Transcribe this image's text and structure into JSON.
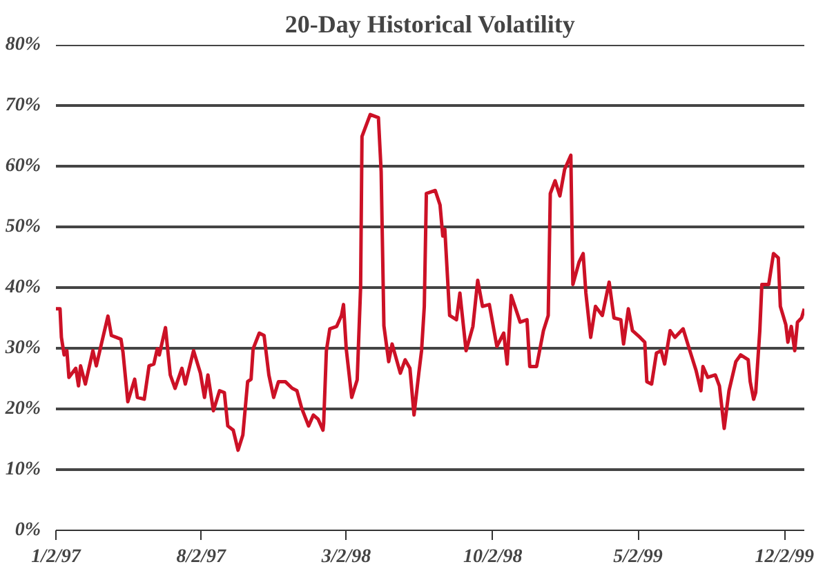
{
  "chart_data": {
    "type": "line",
    "title": "20-Day Historical Volatility",
    "x": [
      "1997-01-02",
      "1997-01-08",
      "1997-01-10",
      "1997-01-14",
      "1997-01-18",
      "1997-01-21",
      "1997-01-31",
      "1997-02-04",
      "1997-02-07",
      "1997-02-14",
      "1997-02-25",
      "1997-03-02",
      "1997-03-10",
      "1997-03-19",
      "1997-03-24",
      "1997-03-31",
      "1997-04-07",
      "1997-04-10",
      "1997-04-17",
      "1997-04-27",
      "1997-05-01",
      "1997-05-11",
      "1997-05-18",
      "1997-05-25",
      "1997-05-30",
      "1997-06-02",
      "1997-06-11",
      "1997-06-18",
      "1997-06-25",
      "1997-07-05",
      "1997-07-10",
      "1997-07-22",
      "1997-08-01",
      "1997-08-07",
      "1997-08-12",
      "1997-08-20",
      "1997-08-29",
      "1997-09-05",
      "1997-09-10",
      "1997-09-18",
      "1997-09-25",
      "1997-10-02",
      "1997-10-09",
      "1997-10-14",
      "1997-10-17",
      "1997-10-26",
      "1997-11-02",
      "1997-11-09",
      "1997-11-16",
      "1997-11-23",
      "1997-12-03",
      "1997-12-13",
      "1997-12-20",
      "1997-12-27",
      "1998-01-06",
      "1998-01-13",
      "1998-01-20",
      "1998-01-27",
      "1998-01-28",
      "1998-02-01",
      "1998-02-06",
      "1998-02-16",
      "1998-02-23",
      "1998-02-26",
      "1998-03-02",
      "1998-03-10",
      "1998-03-18",
      "1998-03-23",
      "1998-03-25",
      "1998-04-06",
      "1998-04-18",
      "1998-04-22",
      "1998-04-26",
      "1998-05-03",
      "1998-05-08",
      "1998-05-20",
      "1998-05-27",
      "1998-06-03",
      "1998-06-09",
      "1998-06-16",
      "1998-06-20",
      "1998-06-24",
      "1998-06-27",
      "1998-07-10",
      "1998-07-17",
      "1998-07-21",
      "1998-07-24",
      "1998-07-31",
      "1998-08-10",
      "1998-08-15",
      "1998-08-24",
      "1998-09-03",
      "1998-09-10",
      "1998-09-17",
      "1998-09-27",
      "1998-10-08",
      "1998-10-18",
      "1998-10-23",
      "1998-10-29",
      "1998-11-11",
      "1998-11-21",
      "1998-11-25",
      "1998-12-05",
      "1998-12-15",
      "1998-12-22",
      "1998-12-25",
      "1999-01-01",
      "1999-01-08",
      "1999-01-15",
      "1999-01-24",
      "1999-01-27",
      "1999-02-05",
      "1999-02-11",
      "1999-02-15",
      "1999-02-22",
      "1999-03-01",
      "1999-03-11",
      "1999-03-21",
      "1999-03-28",
      "1999-04-07",
      "1999-04-11",
      "1999-04-18",
      "1999-04-24",
      "1999-05-05",
      "1999-05-12",
      "1999-05-15",
      "1999-05-22",
      "1999-05-29",
      "1999-06-05",
      "1999-06-10",
      "1999-06-18",
      "1999-06-25",
      "1999-07-07",
      "1999-07-16",
      "1999-07-26",
      "1999-08-02",
      "1999-08-05",
      "1999-08-12",
      "1999-08-23",
      "1999-08-29",
      "1999-09-05",
      "1999-09-12",
      "1999-09-22",
      "1999-09-29",
      "1999-10-10",
      "1999-10-13",
      "1999-10-18",
      "1999-10-21",
      "1999-10-27",
      "1999-10-30",
      "1999-11-09",
      "1999-11-16",
      "1999-11-23",
      "1999-11-26",
      "1999-12-04",
      "1999-12-07",
      "1999-12-12",
      "1999-12-17",
      "1999-12-21",
      "1999-12-27",
      "1999-12-31"
    ],
    "series": [
      {
        "color": "#cc1126",
        "values": [
          36.5,
          36.5,
          31.8,
          28.9,
          29.6,
          25.2,
          26.7,
          23.8,
          27.1,
          24.1,
          29.6,
          27.1,
          31.0,
          35.3,
          32.1,
          31.8,
          31.5,
          29.3,
          21.2,
          24.9,
          21.9,
          21.6,
          27.1,
          27.4,
          29.9,
          28.9,
          33.4,
          25.6,
          23.4,
          26.7,
          24.1,
          29.6,
          25.9,
          21.9,
          25.6,
          19.7,
          23.0,
          22.7,
          17.2,
          16.5,
          13.2,
          15.7,
          24.5,
          24.9,
          29.9,
          32.5,
          32.1,
          25.6,
          21.9,
          24.5,
          24.5,
          23.4,
          23.0,
          20.1,
          17.2,
          19.0,
          18.3,
          16.5,
          17.6,
          29.6,
          33.2,
          33.6,
          35.4,
          37.2,
          29.9,
          21.9,
          24.8,
          40.1,
          64.9,
          68.5,
          68.0,
          59.1,
          33.7,
          27.8,
          30.7,
          25.9,
          28.1,
          26.7,
          19.0,
          25.9,
          29.6,
          36.9,
          55.5,
          56.0,
          53.6,
          48.5,
          49.6,
          35.4,
          34.7,
          39.1,
          29.6,
          33.6,
          41.2,
          36.9,
          37.2,
          30.3,
          32.5,
          27.4,
          38.7,
          34.3,
          34.7,
          27.0,
          27.0,
          32.9,
          35.4,
          55.5,
          57.6,
          55.1,
          59.5,
          61.8,
          40.5,
          44.2,
          45.6,
          39.1,
          31.8,
          36.9,
          35.4,
          40.9,
          35.0,
          34.7,
          30.7,
          36.5,
          32.9,
          31.8,
          31.0,
          24.5,
          24.1,
          29.2,
          29.6,
          27.4,
          32.9,
          31.8,
          33.2,
          29.9,
          26.3,
          23.0,
          27.0,
          25.2,
          25.6,
          23.8,
          16.8,
          23.0,
          27.8,
          28.9,
          28.1,
          24.5,
          21.6,
          22.7,
          32.9,
          40.5,
          40.5,
          45.6,
          44.9,
          36.9,
          33.9,
          31.0,
          33.6,
          29.6,
          34.3,
          35.0,
          36.5
        ]
      }
    ],
    "xlim": [
      "1997-01-02",
      "1999-12-31"
    ],
    "xticks": [
      {
        "value": "1997-01-02",
        "label": "1/2/97"
      },
      {
        "value": "1997-08-02",
        "label": "8/2/97"
      },
      {
        "value": "1998-03-02",
        "label": "3/2/98"
      },
      {
        "value": "1998-10-02",
        "label": "10/2/98"
      },
      {
        "value": "1999-05-02",
        "label": "5/2/99"
      },
      {
        "value": "1999-12-02",
        "label": "12/2/99"
      }
    ],
    "ylim": [
      0,
      80
    ],
    "yticks": [
      {
        "value": 0,
        "label": "0%"
      },
      {
        "value": 10,
        "label": "10%"
      },
      {
        "value": 20,
        "label": "20%"
      },
      {
        "value": 30,
        "label": "30%"
      },
      {
        "value": 40,
        "label": "40%"
      },
      {
        "value": 50,
        "label": "50%"
      },
      {
        "value": 60,
        "label": "60%"
      },
      {
        "value": 70,
        "label": "70%"
      },
      {
        "value": 80,
        "label": "80%"
      }
    ],
    "grid": "y",
    "marker": "none",
    "line_style": "solid"
  }
}
